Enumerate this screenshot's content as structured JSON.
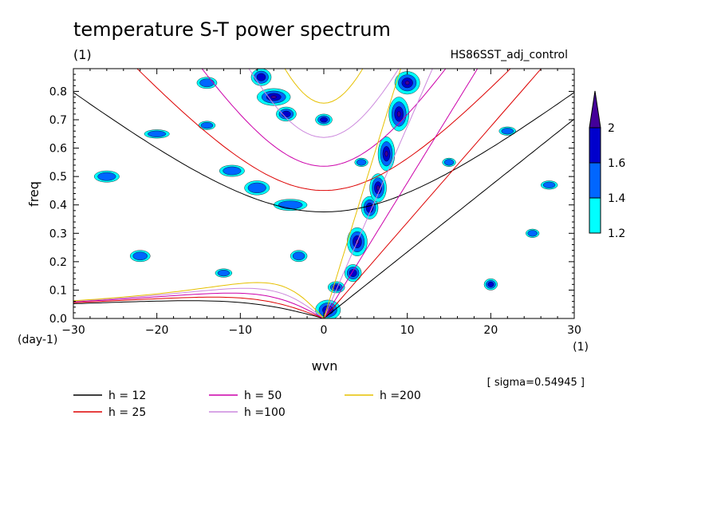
{
  "chart_data": {
    "type": "line",
    "title": "temperature S-T power spectrum",
    "subtitle": "(1)",
    "run_label": "HS86SST_adj_control",
    "xlabel": "wvn",
    "x_unit": "(1)",
    "ylabel": "freq",
    "y_unit": "(day-1)",
    "xlim": [
      -30,
      30
    ],
    "ylim": [
      0,
      0.88
    ],
    "x_ticks": [
      -30,
      -20,
      -10,
      0,
      10,
      20,
      30
    ],
    "y_ticks": [
      0,
      0.1,
      0.2,
      0.3,
      0.4,
      0.5,
      0.6,
      0.7,
      0.8
    ],
    "y_tick_labels": [
      "0.0",
      "0.1",
      "0.2",
      "0.3",
      "0.4",
      "0.5",
      "0.6",
      "0.7",
      "0.8"
    ],
    "annotation": "[ sigma=0.54945 ]",
    "grid": false,
    "legend_position": "bottom",
    "series": [
      {
        "name": "h = 12",
        "equivalent_depth": 12,
        "color": "#000000"
      },
      {
        "name": "h = 25",
        "equivalent_depth": 25,
        "color": "#dd0000"
      },
      {
        "name": "h = 50",
        "equivalent_depth": 50,
        "color": "#cc00aa"
      },
      {
        "name": "h =100",
        "equivalent_depth": 100,
        "color": "#cc88dd"
      },
      {
        "name": "h =200",
        "equivalent_depth": 200,
        "color": "#e6c000"
      }
    ],
    "colorbar": {
      "levels": [
        1.2,
        1.4,
        1.6,
        2
      ],
      "labels": [
        "1.2",
        "1.4",
        "1.6",
        "2"
      ],
      "colors": [
        "#00ffff",
        "#0066ff",
        "#0000cc",
        "#440099"
      ]
    },
    "contour_blobs": [
      {
        "x": 0.5,
        "y": 0.03,
        "rx": 1.5,
        "ry": 0.035,
        "level": 3
      },
      {
        "x": 1.5,
        "y": 0.11,
        "rx": 1.0,
        "ry": 0.02,
        "level": 2
      },
      {
        "x": 3.5,
        "y": 0.16,
        "rx": 1.0,
        "ry": 0.03,
        "level": 2
      },
      {
        "x": 4.0,
        "y": 0.27,
        "rx": 1.2,
        "ry": 0.05,
        "level": 3
      },
      {
        "x": 5.5,
        "y": 0.39,
        "rx": 1.0,
        "ry": 0.04,
        "level": 2
      },
      {
        "x": 6.5,
        "y": 0.46,
        "rx": 1.0,
        "ry": 0.05,
        "level": 3
      },
      {
        "x": 7.5,
        "y": 0.58,
        "rx": 1.0,
        "ry": 0.06,
        "level": 3
      },
      {
        "x": 9.0,
        "y": 0.72,
        "rx": 1.2,
        "ry": 0.06,
        "level": 3
      },
      {
        "x": 10.0,
        "y": 0.83,
        "rx": 1.5,
        "ry": 0.04,
        "level": 3
      },
      {
        "x": -6.0,
        "y": 0.78,
        "rx": 2.0,
        "ry": 0.03,
        "level": 3
      },
      {
        "x": -4.5,
        "y": 0.72,
        "rx": 1.2,
        "ry": 0.025,
        "level": 2
      },
      {
        "x": 0.0,
        "y": 0.7,
        "rx": 1.0,
        "ry": 0.02,
        "level": 2
      },
      {
        "x": -7.5,
        "y": 0.85,
        "rx": 1.2,
        "ry": 0.03,
        "level": 2
      },
      {
        "x": -11.0,
        "y": 0.52,
        "rx": 1.5,
        "ry": 0.02,
        "level": 1
      },
      {
        "x": -8.0,
        "y": 0.46,
        "rx": 1.5,
        "ry": 0.025,
        "level": 1
      },
      {
        "x": -4.0,
        "y": 0.4,
        "rx": 2.0,
        "ry": 0.02,
        "level": 1
      },
      {
        "x": -3.0,
        "y": 0.22,
        "rx": 1.0,
        "ry": 0.02,
        "level": 1
      },
      {
        "x": -26.0,
        "y": 0.5,
        "rx": 1.5,
        "ry": 0.02,
        "level": 1
      },
      {
        "x": -20.0,
        "y": 0.65,
        "rx": 1.5,
        "ry": 0.015,
        "level": 1
      },
      {
        "x": -14.0,
        "y": 0.68,
        "rx": 1.0,
        "ry": 0.015,
        "level": 1
      },
      {
        "x": -22.0,
        "y": 0.22,
        "rx": 1.2,
        "ry": 0.02,
        "level": 1
      },
      {
        "x": -12.0,
        "y": 0.16,
        "rx": 1.0,
        "ry": 0.015,
        "level": 1
      },
      {
        "x": 20.0,
        "y": 0.12,
        "rx": 0.8,
        "ry": 0.02,
        "level": 2
      },
      {
        "x": 22.0,
        "y": 0.66,
        "rx": 1.0,
        "ry": 0.015,
        "level": 1
      },
      {
        "x": 27.0,
        "y": 0.47,
        "rx": 1.0,
        "ry": 0.015,
        "level": 1
      },
      {
        "x": 15.0,
        "y": 0.55,
        "rx": 0.8,
        "ry": 0.015,
        "level": 1
      },
      {
        "x": 25.0,
        "y": 0.3,
        "rx": 0.8,
        "ry": 0.015,
        "level": 1
      },
      {
        "x": -14.0,
        "y": 0.83,
        "rx": 1.2,
        "ry": 0.02,
        "level": 1
      },
      {
        "x": 4.5,
        "y": 0.55,
        "rx": 0.8,
        "ry": 0.015,
        "level": 1
      }
    ]
  },
  "legend_items": [
    {
      "label": "h = 12",
      "color": "#000000"
    },
    {
      "label": "h = 25",
      "color": "#dd0000"
    },
    {
      "label": "h = 50",
      "color": "#cc00aa"
    },
    {
      "label": "h =100",
      "color": "#cc88dd"
    },
    {
      "label": "h =200",
      "color": "#e6c000"
    }
  ]
}
